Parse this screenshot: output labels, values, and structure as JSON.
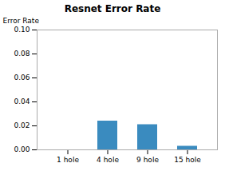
{
  "chart_data": {
    "type": "bar",
    "title": "Resnet Error Rate",
    "ylabel": "Error Rate",
    "categories": [
      "1 hole",
      "4 hole",
      "9 hole",
      "15 hole"
    ],
    "values": [
      0.0,
      0.024,
      0.021,
      0.003
    ],
    "color": "#3a8bbf",
    "ylim": [
      0,
      0.1
    ],
    "yticks": [
      {
        "value": 0.0,
        "label": "0.00"
      },
      0.02,
      0.04,
      0.06,
      0.08,
      {
        "value": 0.1,
        "label": "0.10"
      }
    ],
    "grid": false
  }
}
